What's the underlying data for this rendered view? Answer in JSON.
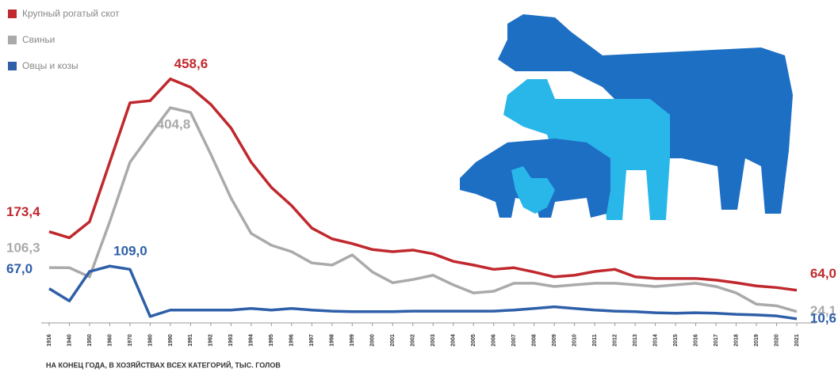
{
  "chart_data": {
    "type": "line",
    "note": "НА КОНЕЦ ГОДА, В ХОЗЯЙСТВАХ ВСЕХ КАТЕГОРИЙ, ТЫС. ГОЛОВ",
    "categories": [
      "1916",
      "1940",
      "1950",
      "1960",
      "1970",
      "1980",
      "1990",
      "1991",
      "1992",
      "1993",
      "1994",
      "1995",
      "1996",
      "1997",
      "1998",
      "1999",
      "2000",
      "2001",
      "2002",
      "2003",
      "2004",
      "2005",
      "2006",
      "2007",
      "2008",
      "2009",
      "2010",
      "2011",
      "2012",
      "2013",
      "2014",
      "2015",
      "2016",
      "2017",
      "2018",
      "2019",
      "2020",
      "2021"
    ],
    "ylim": [
      0,
      470
    ],
    "legend": "top-left",
    "series": [
      {
        "name": "Крупный рогатый скот",
        "color": "#c0282d",
        "values": [
          173.4,
          162,
          192,
          303,
          414,
          418,
          458.6,
          443,
          411,
          367,
          303,
          256,
          222,
          180,
          160,
          151,
          140,
          136,
          139,
          132,
          118,
          111,
          103,
          106,
          98,
          89,
          92,
          99,
          103,
          89,
          86,
          86,
          86,
          83,
          78,
          72,
          69,
          64.0
        ],
        "value_labels": [
          "173,4",
          null,
          null,
          null,
          null,
          null,
          "458,6",
          null,
          null,
          null,
          null,
          null,
          null,
          null,
          null,
          null,
          null,
          null,
          null,
          null,
          null,
          null,
          null,
          null,
          null,
          null,
          null,
          null,
          null,
          null,
          null,
          null,
          null,
          null,
          null,
          null,
          null,
          "64,0"
        ]
      },
      {
        "name": "Свиньи",
        "color": "#aaaaaa",
        "values": [
          106.3,
          106,
          89,
          192,
          303,
          355,
          404.8,
          396,
          318,
          236,
          170,
          148,
          136,
          115,
          111,
          130,
          98,
          78,
          84,
          92,
          74,
          59,
          62,
          77,
          77,
          71,
          74,
          77,
          77,
          74,
          71,
          74,
          77,
          71,
          59,
          38,
          35,
          24.1
        ],
        "value_labels": [
          "106,3",
          null,
          null,
          null,
          null,
          null,
          "404,8",
          null,
          null,
          null,
          null,
          null,
          null,
          null,
          null,
          null,
          null,
          null,
          null,
          null,
          null,
          null,
          null,
          null,
          null,
          null,
          null,
          null,
          null,
          null,
          null,
          null,
          null,
          null,
          null,
          null,
          null,
          "24,1"
        ]
      },
      {
        "name": "Овцы и козы",
        "color": "#2e5fa8",
        "values": [
          67.0,
          44,
          99,
          109.0,
          103,
          15,
          27,
          27,
          27,
          27,
          30,
          27,
          30,
          27,
          25,
          24,
          24,
          24,
          25,
          25,
          25,
          25,
          25,
          27,
          30,
          33,
          30,
          27,
          25,
          24,
          22,
          21,
          22,
          21,
          19,
          18,
          16,
          10.6
        ],
        "value_labels": [
          "67,0",
          null,
          null,
          "109,0",
          null,
          null,
          null,
          null,
          null,
          null,
          null,
          null,
          null,
          null,
          null,
          null,
          null,
          null,
          null,
          null,
          null,
          null,
          null,
          null,
          null,
          null,
          null,
          null,
          null,
          null,
          null,
          null,
          null,
          null,
          null,
          null,
          null,
          "10,6"
        ]
      }
    ]
  }
}
